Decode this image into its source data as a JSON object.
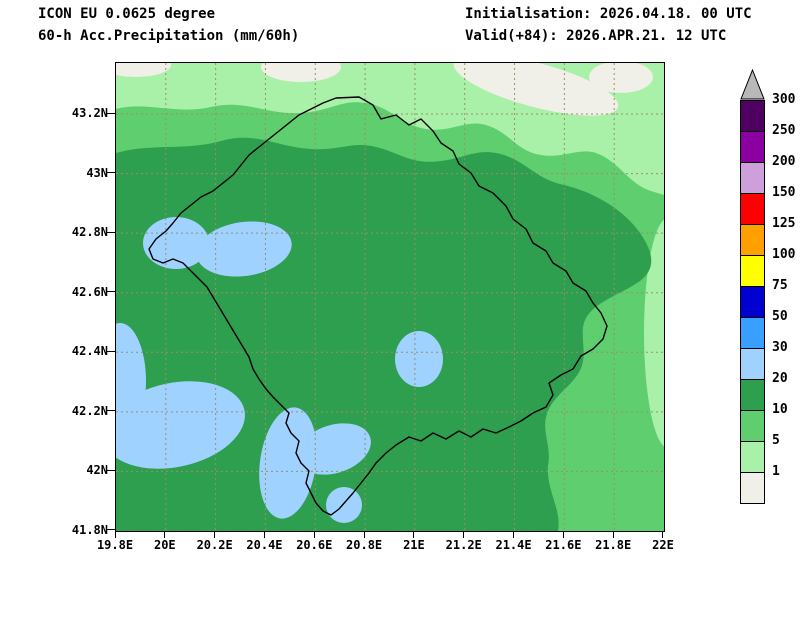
{
  "header": {
    "model_line": "ICON EU 0.0625 degree",
    "param_line": "60-h Acc.Precipitation (mm/60h)",
    "init_line": "Initialisation: 2026.04.18. 00 UTC",
    "valid_line": "Valid(+84): 2026.APR.21. 12 UTC"
  },
  "map": {
    "lat_labels": [
      "43.2N",
      "43N",
      "42.8N",
      "42.6N",
      "42.4N",
      "42.2N",
      "42N",
      "41.8N"
    ],
    "lon_labels": [
      "19.8E",
      "20E",
      "20.2E",
      "20.4E",
      "20.6E",
      "20.8E",
      "21E",
      "21.2E",
      "21.4E",
      "21.6E",
      "21.8E",
      "22E"
    ],
    "grid_color": "#9a8f6a",
    "border_color": "#000000",
    "region_colors": {
      "below_1": "#f0f0e8",
      "1_to_5": "#a9f0a9",
      "5_to_10": "#5fce6e",
      "10_to_20": "#2e9e4f",
      "20_to_30": "#a0d2ff"
    }
  },
  "legend": {
    "unit": "mm/60h",
    "arrow_color": "#b8b8b8",
    "segments": [
      {
        "label": "300",
        "color": "#500060"
      },
      {
        "label": "250",
        "color": "#8a00a0"
      },
      {
        "label": "200",
        "color": "#cda0dc"
      },
      {
        "label": "150",
        "color": "#ff0000"
      },
      {
        "label": "125",
        "color": "#ffa000"
      },
      {
        "label": "100",
        "color": "#ffff00"
      },
      {
        "label": "75",
        "color": "#0000d0"
      },
      {
        "label": "50",
        "color": "#3aa0ff"
      },
      {
        "label": "30",
        "color": "#a0d2ff"
      },
      {
        "label": "20",
        "color": "#2e9e4f"
      },
      {
        "label": "10",
        "color": "#5fce6e"
      },
      {
        "label": "5",
        "color": "#a9f0a9"
      },
      {
        "label": "1",
        "color": "#f0f0e8"
      }
    ]
  }
}
